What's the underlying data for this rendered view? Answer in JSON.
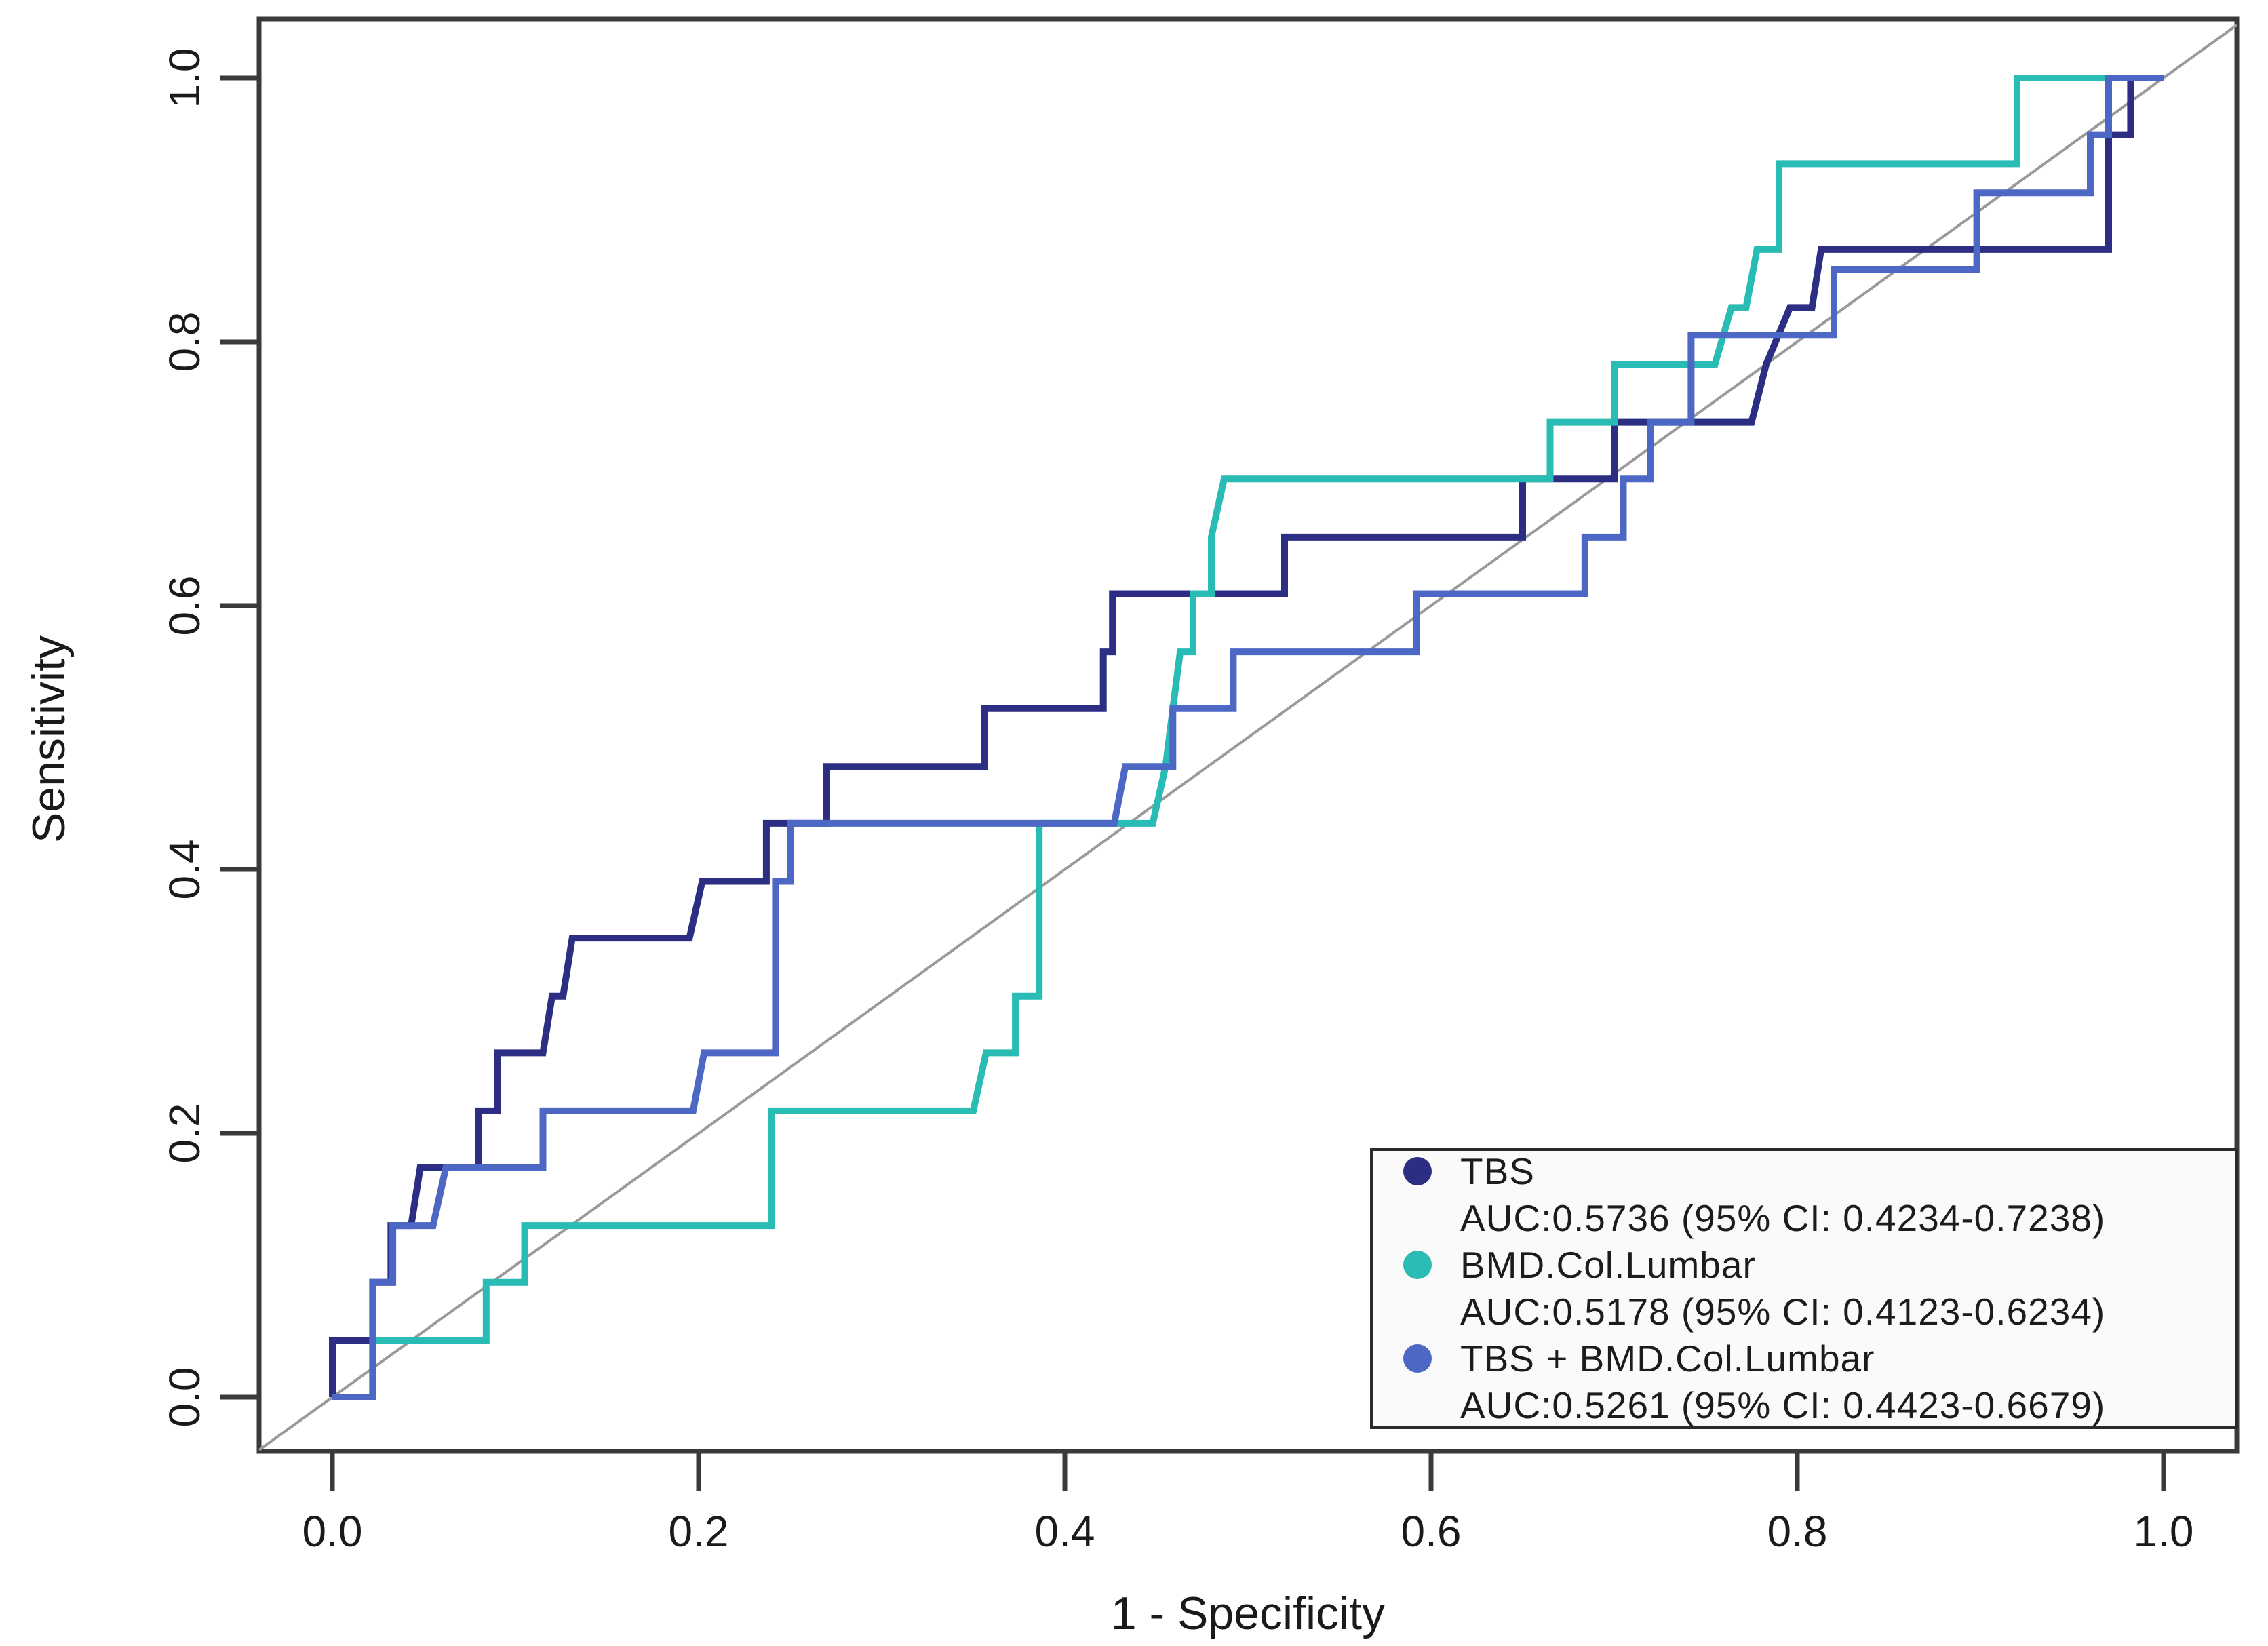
{
  "chart_data": {
    "type": "line",
    "subtype": "roc-step-curves",
    "title": "",
    "xlabel": "1 - Specificity",
    "ylabel": "Sensitivity",
    "xlim": [
      0.0,
      1.0
    ],
    "ylim": [
      0.0,
      1.0
    ],
    "grid": false,
    "legend_position": "bottom-right",
    "reference_diagonal": true,
    "x_tick_labels": [
      "0.0",
      "0.2",
      "0.4",
      "0.6",
      "0.8",
      "1.0"
    ],
    "y_tick_labels": [
      "0.0",
      "0.2",
      "0.4",
      "0.6",
      "0.8",
      "1.0"
    ],
    "x_tick_values": [
      0.0,
      0.2,
      0.4,
      0.6,
      0.8,
      1.0
    ],
    "y_tick_values": [
      0.0,
      0.2,
      0.4,
      0.6,
      0.8,
      1.0
    ],
    "series": [
      {
        "name": "TBS",
        "auc_label": "AUC:0.5736 (95% CI: 0.4234-0.7238)",
        "auc": 0.5736,
        "ci_low": 0.4234,
        "ci_high": 0.7238,
        "color": "#2b2e83",
        "points": [
          [
            0,
            0
          ],
          [
            0,
            0.043
          ],
          [
            0.022,
            0.043
          ],
          [
            0.022,
            0.087
          ],
          [
            0.032,
            0.087
          ],
          [
            0.032,
            0.13
          ],
          [
            0.043,
            0.13
          ],
          [
            0.048,
            0.174
          ],
          [
            0.08,
            0.174
          ],
          [
            0.08,
            0.217
          ],
          [
            0.09,
            0.217
          ],
          [
            0.09,
            0.261
          ],
          [
            0.115,
            0.261
          ],
          [
            0.12,
            0.304
          ],
          [
            0.126,
            0.304
          ],
          [
            0.131,
            0.348
          ],
          [
            0.195,
            0.348
          ],
          [
            0.202,
            0.391
          ],
          [
            0.237,
            0.391
          ],
          [
            0.237,
            0.435
          ],
          [
            0.27,
            0.435
          ],
          [
            0.27,
            0.478
          ],
          [
            0.356,
            0.478
          ],
          [
            0.356,
            0.522
          ],
          [
            0.421,
            0.522
          ],
          [
            0.421,
            0.565
          ],
          [
            0.426,
            0.565
          ],
          [
            0.426,
            0.609
          ],
          [
            0.52,
            0.609
          ],
          [
            0.52,
            0.652
          ],
          [
            0.65,
            0.652
          ],
          [
            0.65,
            0.696
          ],
          [
            0.7,
            0.696
          ],
          [
            0.7,
            0.739
          ],
          [
            0.775,
            0.739
          ],
          [
            0.783,
            0.783
          ],
          [
            0.796,
            0.826
          ],
          [
            0.808,
            0.826
          ],
          [
            0.813,
            0.87
          ],
          [
            0.97,
            0.87
          ],
          [
            0.97,
            0.957
          ],
          [
            0.982,
            0.957
          ],
          [
            0.982,
            1
          ],
          [
            1,
            1
          ]
        ]
      },
      {
        "name": "BMD.Col.Lumbar",
        "auc_label": "AUC:0.5178 (95% CI: 0.4123-0.6234)",
        "auc": 0.5178,
        "ci_low": 0.4123,
        "ci_high": 0.6234,
        "color": "#29bcb4",
        "points": [
          [
            0,
            0
          ],
          [
            0.022,
            0
          ],
          [
            0.022,
            0.043
          ],
          [
            0.084,
            0.043
          ],
          [
            0.084,
            0.087
          ],
          [
            0.105,
            0.087
          ],
          [
            0.105,
            0.13
          ],
          [
            0.24,
            0.13
          ],
          [
            0.24,
            0.217
          ],
          [
            0.35,
            0.217
          ],
          [
            0.357,
            0.261
          ],
          [
            0.373,
            0.261
          ],
          [
            0.373,
            0.304
          ],
          [
            0.386,
            0.304
          ],
          [
            0.386,
            0.435
          ],
          [
            0.448,
            0.435
          ],
          [
            0.455,
            0.478
          ],
          [
            0.459,
            0.522
          ],
          [
            0.463,
            0.565
          ],
          [
            0.47,
            0.565
          ],
          [
            0.47,
            0.609
          ],
          [
            0.48,
            0.609
          ],
          [
            0.48,
            0.652
          ],
          [
            0.487,
            0.696
          ],
          [
            0.665,
            0.696
          ],
          [
            0.665,
            0.739
          ],
          [
            0.7,
            0.739
          ],
          [
            0.7,
            0.783
          ],
          [
            0.755,
            0.783
          ],
          [
            0.764,
            0.826
          ],
          [
            0.772,
            0.826
          ],
          [
            0.778,
            0.87
          ],
          [
            0.79,
            0.87
          ],
          [
            0.79,
            0.935
          ],
          [
            0.92,
            0.935
          ],
          [
            0.92,
            1
          ],
          [
            1,
            1
          ]
        ]
      },
      {
        "name": "TBS + BMD.Col.Lumbar",
        "auc_label": "AUC:0.5261 (95% CI: 0.4423-0.6679)",
        "auc": 0.5261,
        "ci_low": 0.4423,
        "ci_high": 0.6679,
        "color": "#4c68c4",
        "points": [
          [
            0,
            0
          ],
          [
            0.022,
            0
          ],
          [
            0.022,
            0.087
          ],
          [
            0.033,
            0.087
          ],
          [
            0.033,
            0.13
          ],
          [
            0.055,
            0.13
          ],
          [
            0.062,
            0.174
          ],
          [
            0.115,
            0.174
          ],
          [
            0.115,
            0.217
          ],
          [
            0.197,
            0.217
          ],
          [
            0.203,
            0.261
          ],
          [
            0.242,
            0.261
          ],
          [
            0.242,
            0.391
          ],
          [
            0.25,
            0.391
          ],
          [
            0.25,
            0.435
          ],
          [
            0.427,
            0.435
          ],
          [
            0.433,
            0.478
          ],
          [
            0.459,
            0.478
          ],
          [
            0.459,
            0.522
          ],
          [
            0.492,
            0.522
          ],
          [
            0.492,
            0.565
          ],
          [
            0.592,
            0.565
          ],
          [
            0.592,
            0.609
          ],
          [
            0.684,
            0.609
          ],
          [
            0.684,
            0.652
          ],
          [
            0.705,
            0.652
          ],
          [
            0.705,
            0.696
          ],
          [
            0.72,
            0.696
          ],
          [
            0.72,
            0.739
          ],
          [
            0.742,
            0.739
          ],
          [
            0.742,
            0.805
          ],
          [
            0.82,
            0.805
          ],
          [
            0.82,
            0.855
          ],
          [
            0.898,
            0.855
          ],
          [
            0.898,
            0.913
          ],
          [
            0.96,
            0.913
          ],
          [
            0.96,
            0.957
          ],
          [
            0.97,
            0.957
          ],
          [
            0.97,
            1
          ],
          [
            1,
            1
          ]
        ]
      }
    ],
    "styles": {
      "curve_stroke_width": 10,
      "frame_color": "#3a3a3a",
      "diagonal_color": "#9a9a9a",
      "text_color": "#1a1a1a",
      "legend_background": "#fafafa",
      "legend_border": "#2b2b2b"
    }
  }
}
